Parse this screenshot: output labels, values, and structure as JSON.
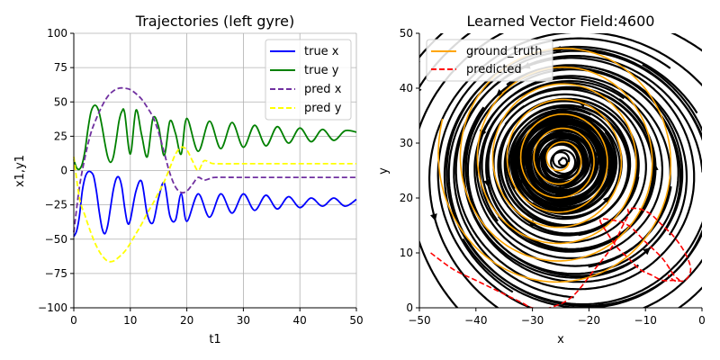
{
  "chart_data": [
    {
      "type": "line",
      "title": "Trajectories (left gyre)",
      "xlabel": "t1",
      "ylabel": "x1,y1",
      "xlim": [
        0,
        50
      ],
      "ylim": [
        -100,
        100
      ],
      "xticks": [
        "0",
        "10",
        "20",
        "30",
        "40",
        "50"
      ],
      "yticks": [
        "−100",
        "−75",
        "−50",
        "−25",
        "0",
        "25",
        "50",
        "75",
        "100"
      ],
      "grid": true,
      "legend_position": "upper right",
      "series": [
        {
          "name": "true x",
          "color": "#0000ff",
          "style": "solid",
          "x": [
            0,
            0.5,
            1,
            1.5,
            2,
            2.5,
            3,
            3.5,
            4,
            4.5,
            5,
            5.5,
            6,
            6.5,
            7,
            7.5,
            8,
            8.5,
            9,
            9.5,
            10,
            11,
            12,
            13,
            14,
            15,
            16,
            17,
            18,
            19,
            20,
            22,
            24,
            26,
            28,
            30,
            32,
            34,
            36,
            38,
            40,
            42,
            44,
            46,
            48,
            50
          ],
          "values": [
            -48,
            -44,
            -33,
            -15,
            -5,
            -1,
            -1,
            -4,
            -15,
            -30,
            -42,
            -46,
            -40,
            -27,
            -14,
            -6,
            -5,
            -12,
            -27,
            -38,
            -36,
            -15,
            -8,
            -32,
            -38,
            -20,
            -9,
            -33,
            -36,
            -17,
            -37,
            -17,
            -34,
            -17,
            -31,
            -17,
            -29,
            -18,
            -28,
            -19,
            -27,
            -20,
            -26,
            -20,
            -26,
            -21
          ]
        },
        {
          "name": "true y",
          "color": "#008000",
          "style": "solid",
          "x": [
            0,
            0.5,
            1,
            1.5,
            2,
            2.5,
            3,
            3.5,
            4,
            4.5,
            5,
            5.5,
            6,
            6.5,
            7,
            7.5,
            8,
            8.5,
            9,
            10,
            11,
            12,
            13,
            14,
            15,
            16,
            17,
            18,
            19,
            20,
            22,
            24,
            26,
            28,
            30,
            32,
            34,
            36,
            38,
            40,
            42,
            44,
            46,
            48,
            50
          ],
          "values": [
            8,
            2,
            1,
            5,
            15,
            30,
            42,
            47,
            47,
            42,
            32,
            20,
            10,
            6,
            10,
            22,
            36,
            43,
            42,
            12,
            44,
            26,
            10,
            38,
            32,
            11,
            36,
            27,
            12,
            38,
            14,
            36,
            16,
            35,
            17,
            33,
            18,
            32,
            20,
            31,
            21,
            30,
            22,
            29,
            28
          ]
        },
        {
          "name": "pred x",
          "color": "#7030a0",
          "style": "dashed",
          "x": [
            0,
            1,
            2,
            3,
            4,
            5,
            6,
            7,
            8,
            9,
            10,
            11,
            12,
            13,
            14,
            15,
            16,
            17,
            18,
            19,
            20,
            21,
            22,
            23,
            24,
            25,
            30,
            35,
            40,
            45,
            50
          ],
          "values": [
            -45,
            -12,
            10,
            27,
            38,
            47,
            54,
            58,
            60,
            60,
            59,
            56,
            52,
            46,
            39,
            28,
            13,
            -2,
            -12,
            -16,
            -15,
            -10,
            -5,
            -7,
            -6,
            -5,
            -5,
            -5,
            -5,
            -5,
            -5
          ]
        },
        {
          "name": "pred y",
          "color": "#ffff00",
          "style": "dashed",
          "x": [
            0,
            1,
            2,
            3,
            4,
            5,
            6,
            7,
            8,
            9,
            10,
            11,
            12,
            13,
            14,
            15,
            16,
            17,
            18,
            19,
            20,
            21,
            22,
            23,
            24,
            25,
            30,
            35,
            40,
            45,
            50
          ],
          "values": [
            10,
            -20,
            -33,
            -45,
            -55,
            -62,
            -66,
            -66,
            -63,
            -59,
            -53,
            -46,
            -39,
            -31,
            -24,
            -16,
            -8,
            2,
            12,
            17,
            15,
            7,
            0,
            7,
            6,
            5,
            5,
            5,
            5,
            5,
            5
          ]
        }
      ]
    },
    {
      "type": "streamplot",
      "title": "Learned Vector Field:4600",
      "xlabel": "x",
      "ylabel": "y",
      "xlim": [
        -50,
        0
      ],
      "ylim": [
        0,
        50
      ],
      "xticks": [
        "−50",
        "−40",
        "−30",
        "−20",
        "−10",
        "0"
      ],
      "yticks": [
        "0",
        "10",
        "20",
        "30",
        "40",
        "50"
      ],
      "grid": false,
      "legend_position": "upper left",
      "series": [
        {
          "name": "ground_truth",
          "color": "#ffa500",
          "style": "solid",
          "description": "inward spiral around the left-gyre center",
          "center": [
            -25,
            27
          ],
          "radius_start": [
            22,
            24
          ],
          "radius_end": [
            1.5,
            1.5
          ],
          "turns": 7.5
        },
        {
          "name": "predicted",
          "color": "#ff0000",
          "style": "dashed",
          "x": [
            -48,
            -44,
            -40,
            -36,
            -32,
            -30,
            -27,
            -23,
            -19,
            -16,
            -14,
            -13,
            -13,
            -11,
            -9,
            -7,
            -5,
            -3,
            -2,
            -3,
            -5,
            -7,
            -9,
            -11,
            -13,
            -15,
            -17,
            -18,
            -16,
            -13,
            -10,
            -7,
            -5,
            -4,
            -5,
            -6
          ],
          "values": [
            10,
            7,
            5,
            3,
            1,
            0,
            0,
            2,
            7,
            11,
            15,
            17,
            18,
            18,
            17,
            15,
            13,
            10,
            7,
            5,
            5,
            5,
            6,
            7,
            9,
            11,
            14,
            16,
            16,
            15,
            12,
            9,
            6,
            5,
            5,
            6
          ]
        }
      ],
      "field": {
        "center": [
          -25,
          27
        ],
        "color": "#000000",
        "description": "counter-clockwise rotation about the center superimposed on a strong diagonal flow toward the lower left"
      }
    }
  ]
}
